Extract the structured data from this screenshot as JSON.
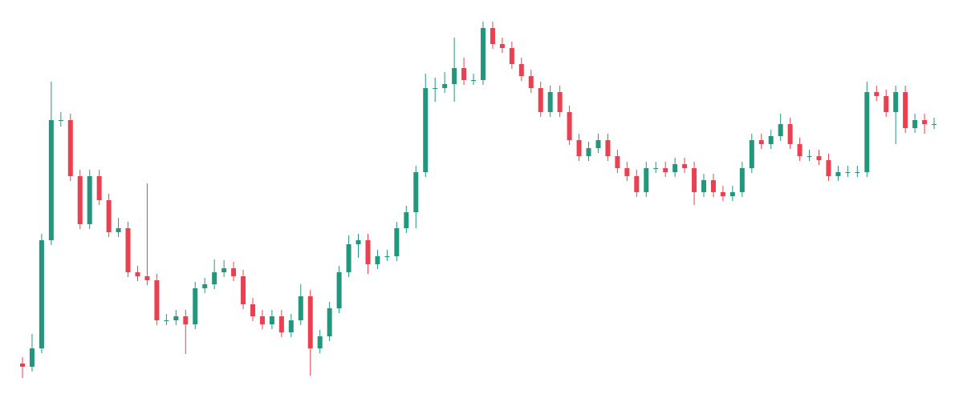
{
  "chart_data": {
    "type": "candlestick",
    "up_color": "#22977e",
    "down_color": "#ec3f4f",
    "ylim": [
      0,
      512
    ],
    "open": [
      58,
      54,
      77,
      212,
      362,
      362,
      292,
      232,
      292,
      262,
      222,
      227,
      172,
      167,
      162,
      112,
      112,
      117,
      107,
      152,
      157,
      172,
      177,
      167,
      132,
      117,
      107,
      117,
      97,
      112,
      142,
      77,
      92,
      127,
      172,
      207,
      212,
      182,
      192,
      192,
      227,
      247,
      297,
      402,
      402,
      407,
      427,
      412,
      412,
      477,
      457,
      452,
      432,
      417,
      402,
      372,
      397,
      372,
      337,
      317,
      327,
      337,
      317,
      302,
      292,
      272,
      302,
      302,
      297,
      307,
      302,
      272,
      287,
      272,
      267,
      272,
      302,
      337,
      332,
      342,
      357,
      332,
      317,
      317,
      312,
      292,
      297,
      297,
      297,
      397,
      392,
      372,
      397,
      352,
      362,
      357
    ],
    "high": [
      66,
      95,
      220,
      410,
      372,
      370,
      300,
      300,
      300,
      270,
      240,
      235,
      180,
      283,
      170,
      120,
      125,
      125,
      160,
      165,
      188,
      187,
      185,
      175,
      140,
      125,
      125,
      125,
      120,
      157,
      150,
      100,
      135,
      180,
      218,
      220,
      220,
      200,
      200,
      235,
      255,
      305,
      420,
      415,
      422,
      465,
      440,
      420,
      485,
      485,
      465,
      460,
      440,
      425,
      410,
      405,
      405,
      380,
      345,
      335,
      345,
      345,
      325,
      310,
      300,
      310,
      310,
      310,
      315,
      315,
      310,
      295,
      295,
      280,
      280,
      310,
      345,
      345,
      350,
      370,
      365,
      340,
      325,
      325,
      320,
      305,
      305,
      305,
      410,
      405,
      400,
      405,
      405,
      370,
      370,
      365
    ],
    "low": [
      40,
      48,
      71,
      206,
      354,
      286,
      226,
      226,
      256,
      216,
      216,
      166,
      161,
      156,
      106,
      106,
      106,
      70,
      101,
      146,
      151,
      166,
      161,
      126,
      111,
      101,
      101,
      91,
      91,
      106,
      43,
      71,
      86,
      121,
      166,
      190,
      170,
      176,
      186,
      186,
      221,
      227,
      291,
      385,
      396,
      385,
      406,
      406,
      406,
      451,
      446,
      426,
      411,
      396,
      366,
      366,
      366,
      331,
      311,
      311,
      321,
      311,
      296,
      286,
      266,
      266,
      296,
      291,
      291,
      296,
      256,
      266,
      266,
      261,
      261,
      266,
      296,
      326,
      326,
      336,
      326,
      311,
      311,
      306,
      286,
      286,
      291,
      291,
      291,
      386,
      366,
      332,
      346,
      346,
      345,
      351
    ],
    "close": [
      54,
      77,
      212,
      362,
      362,
      292,
      232,
      292,
      262,
      222,
      227,
      172,
      167,
      162,
      112,
      112,
      117,
      107,
      152,
      157,
      172,
      177,
      167,
      132,
      117,
      107,
      117,
      97,
      112,
      142,
      77,
      92,
      127,
      172,
      207,
      212,
      182,
      192,
      192,
      227,
      247,
      297,
      402,
      402,
      407,
      427,
      412,
      412,
      477,
      457,
      452,
      432,
      417,
      402,
      372,
      397,
      372,
      337,
      317,
      327,
      337,
      317,
      302,
      292,
      272,
      302,
      302,
      297,
      307,
      302,
      272,
      287,
      272,
      267,
      272,
      302,
      337,
      332,
      342,
      357,
      332,
      317,
      317,
      312,
      292,
      297,
      297,
      297,
      397,
      392,
      372,
      397,
      352,
      362,
      357,
      357
    ]
  }
}
